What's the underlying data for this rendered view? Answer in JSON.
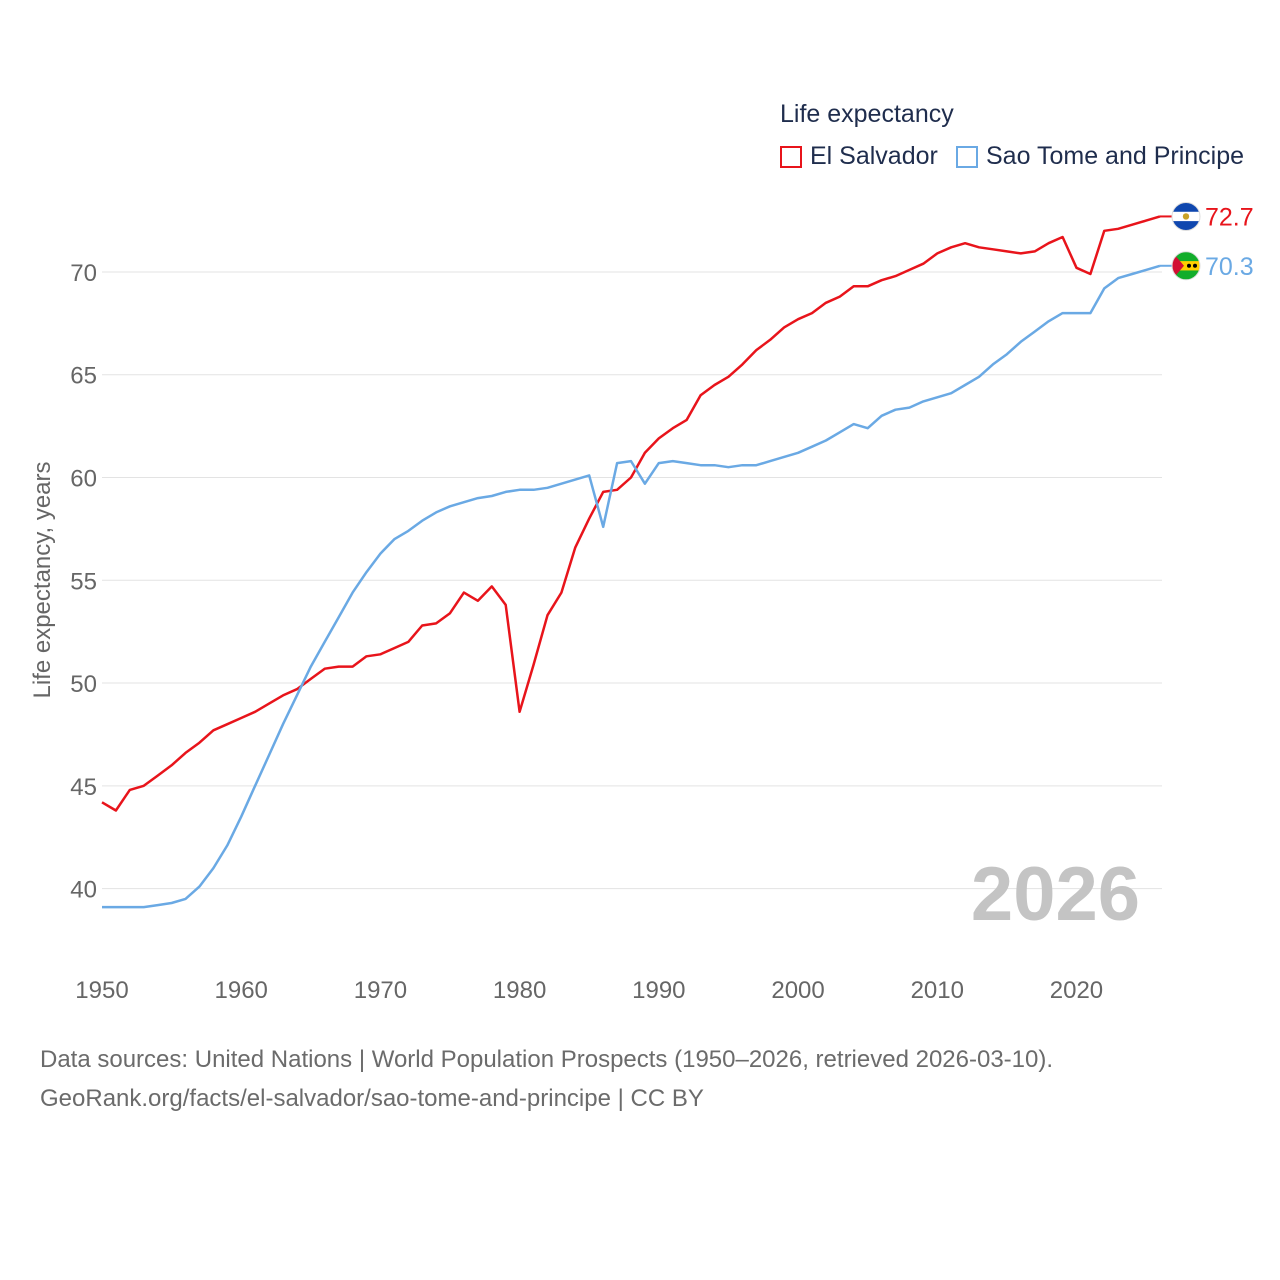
{
  "chart_data": {
    "type": "line",
    "legend_title": "Life expectancy",
    "ylabel": "Life expectancy, years",
    "xlabel": "",
    "xlim": [
      1950,
      2026
    ],
    "ylim": [
      37.5,
      73.5
    ],
    "x_ticks": [
      1950,
      1960,
      1970,
      1980,
      1990,
      2000,
      2010,
      2020
    ],
    "y_ticks": [
      40,
      45,
      50,
      55,
      60,
      65,
      70
    ],
    "current_year_label": "2026",
    "x": [
      1950,
      1951,
      1952,
      1953,
      1954,
      1955,
      1956,
      1957,
      1958,
      1959,
      1960,
      1961,
      1962,
      1963,
      1964,
      1965,
      1966,
      1967,
      1968,
      1969,
      1970,
      1971,
      1972,
      1973,
      1974,
      1975,
      1976,
      1977,
      1978,
      1979,
      1980,
      1981,
      1982,
      1983,
      1984,
      1985,
      1986,
      1987,
      1988,
      1989,
      1990,
      1991,
      1992,
      1993,
      1994,
      1995,
      1996,
      1997,
      1998,
      1999,
      2000,
      2001,
      2002,
      2003,
      2004,
      2005,
      2006,
      2007,
      2008,
      2009,
      2010,
      2011,
      2012,
      2013,
      2014,
      2015,
      2016,
      2017,
      2018,
      2019,
      2020,
      2021,
      2022,
      2023,
      2024,
      2025,
      2026
    ],
    "series": [
      {
        "name": "El Salvador",
        "color": "#e8141b",
        "end_label": "72.7",
        "flag": "el-salvador-flag-icon",
        "values": [
          44.2,
          43.8,
          44.8,
          45.0,
          45.5,
          46.0,
          46.6,
          47.1,
          47.7,
          48.0,
          48.3,
          48.6,
          49.0,
          49.4,
          49.7,
          50.2,
          50.7,
          50.8,
          50.8,
          51.3,
          51.4,
          51.7,
          52.0,
          52.8,
          52.9,
          53.4,
          54.4,
          54.0,
          54.7,
          53.8,
          48.6,
          50.9,
          53.3,
          54.4,
          56.6,
          58.0,
          59.3,
          59.4,
          60.0,
          61.2,
          61.9,
          62.4,
          62.8,
          64.0,
          64.5,
          64.9,
          65.5,
          66.2,
          66.7,
          67.3,
          67.7,
          68.0,
          68.5,
          68.8,
          69.3,
          69.3,
          69.6,
          69.8,
          70.1,
          70.4,
          70.9,
          71.2,
          71.4,
          71.2,
          71.1,
          71.0,
          70.9,
          71.0,
          71.4,
          71.7,
          70.2,
          69.9,
          72.0,
          72.1,
          72.3,
          72.5,
          72.7
        ]
      },
      {
        "name": "Sao Tome and Principe",
        "color": "#6aa9e4",
        "end_label": "70.3",
        "flag": "sao-tome-flag-icon",
        "values": [
          39.1,
          39.1,
          39.1,
          39.1,
          39.2,
          39.3,
          39.5,
          40.1,
          41.0,
          42.1,
          43.5,
          45.0,
          46.5,
          48.0,
          49.4,
          50.8,
          52.0,
          53.2,
          54.4,
          55.4,
          56.3,
          57.0,
          57.4,
          57.9,
          58.3,
          58.6,
          58.8,
          59.0,
          59.1,
          59.3,
          59.4,
          59.4,
          59.5,
          59.7,
          59.9,
          60.1,
          57.6,
          60.7,
          60.8,
          59.7,
          60.7,
          60.8,
          60.7,
          60.6,
          60.6,
          60.5,
          60.6,
          60.6,
          60.8,
          61.0,
          61.2,
          61.5,
          61.8,
          62.2,
          62.6,
          62.4,
          63.0,
          63.3,
          63.4,
          63.7,
          63.9,
          64.1,
          64.5,
          64.9,
          65.5,
          66.0,
          66.6,
          67.1,
          67.6,
          68.0,
          68.0,
          68.0,
          69.2,
          69.7,
          69.9,
          70.1,
          70.3
        ]
      }
    ]
  },
  "footer": {
    "line1": "Data sources: United Nations | World Population Prospects (1950–2026, retrieved 2026-03-10).",
    "line2": "GeoRank.org/facts/el-salvador/sao-tome-and-principe | CC BY"
  }
}
